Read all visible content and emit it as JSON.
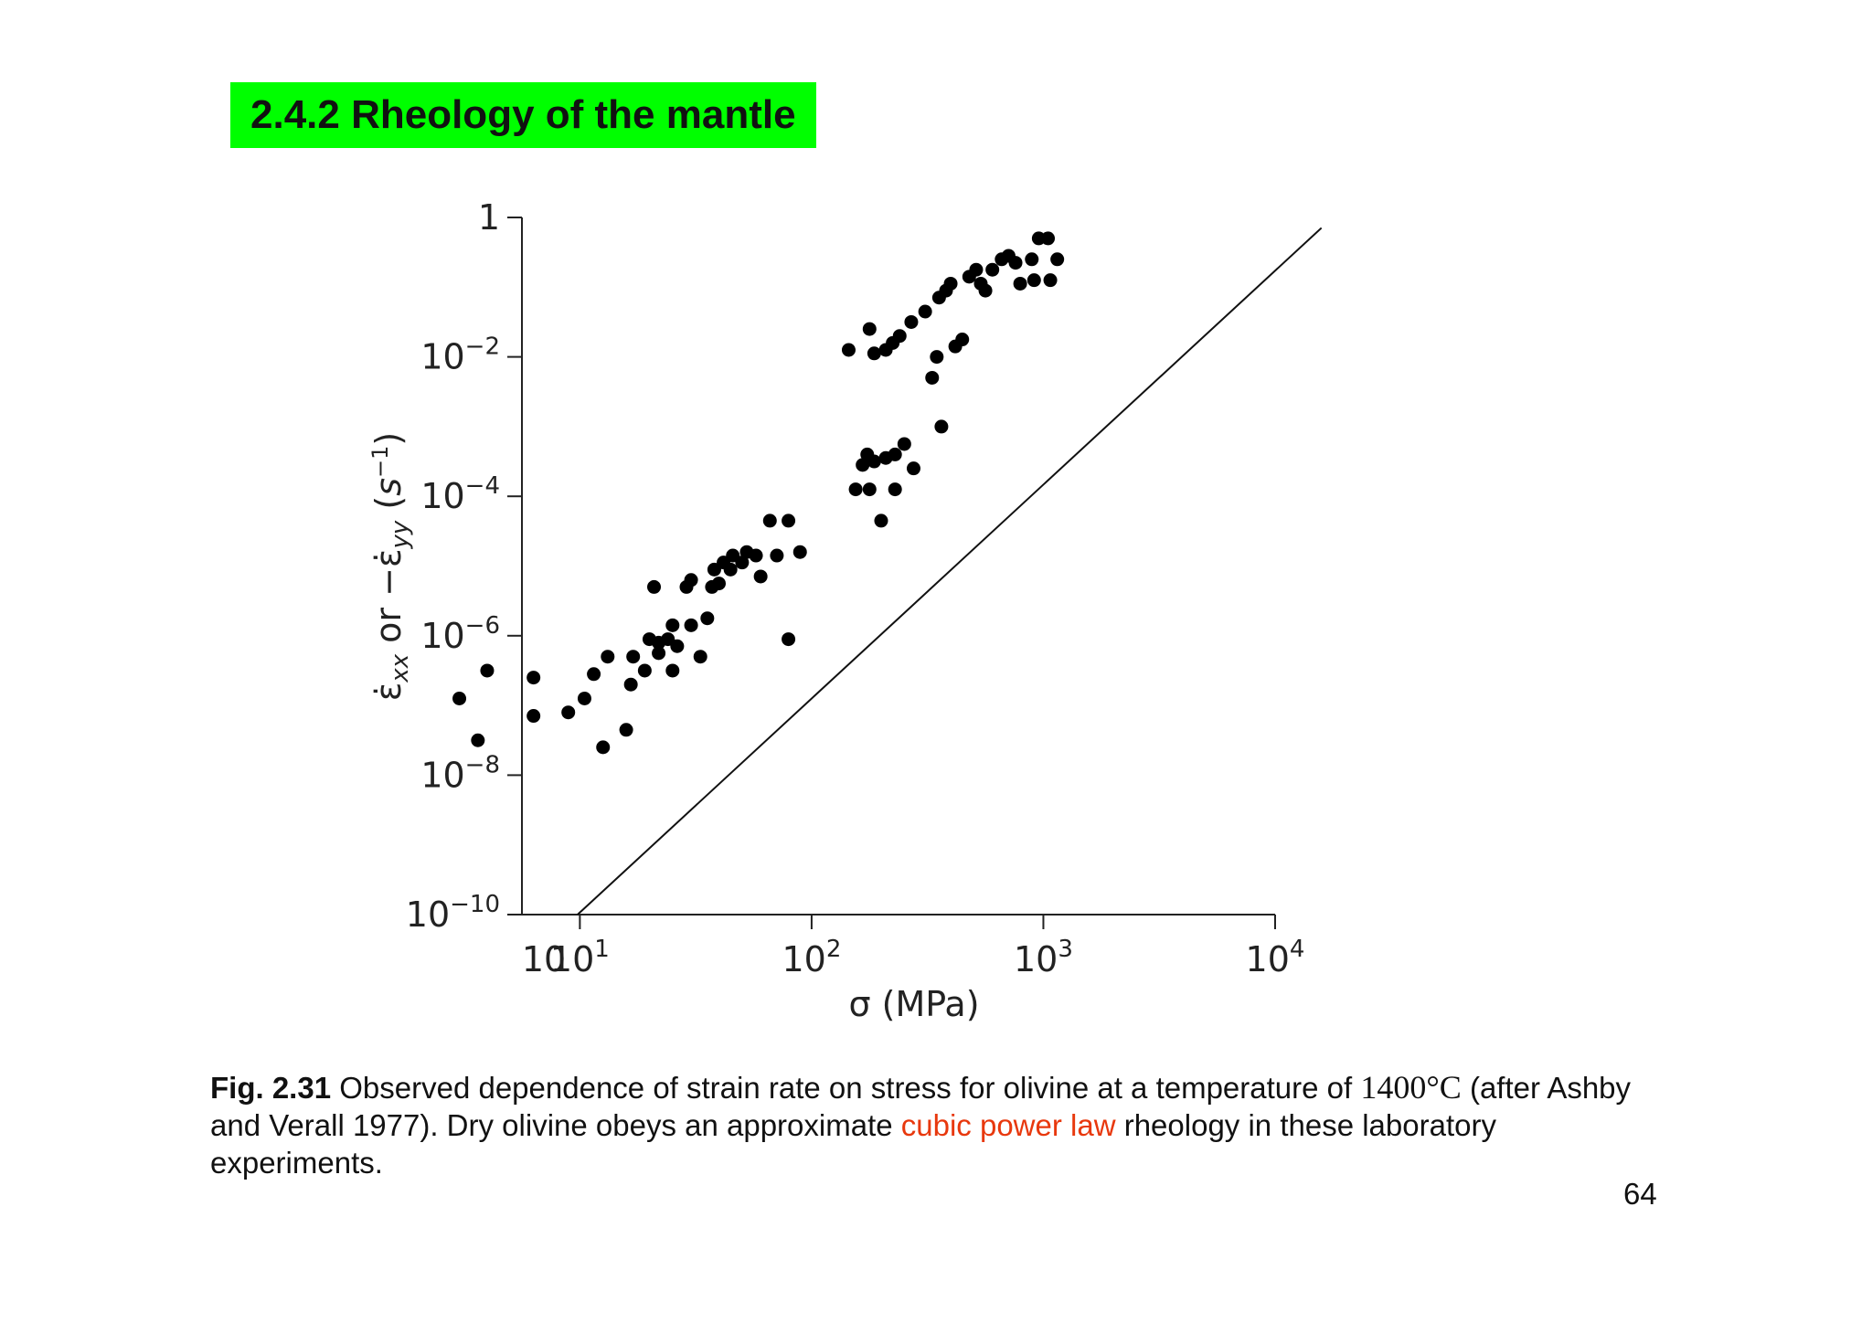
{
  "slide": {
    "title": "2.4.2 Rheology of the mantle",
    "page_number": "64",
    "title_bg": "#00ff00",
    "highlight_color": "#e8380d"
  },
  "caption": {
    "fig_label": "Fig. 2.31",
    "text_1": " Observed dependence of strain rate on stress for olivine at a temperature of ",
    "temperature": "1400°C",
    "text_2": " (after Ashby and Verall 1977). Dry olivine obeys an approximate ",
    "highlight": "cubic power law",
    "text_3": " rheology in these laboratory experiments."
  },
  "chart_data": {
    "type": "scatter",
    "xlabel": "σ (MPa)",
    "ylabel": "ε̇xx or −ε̇yy (s−1)",
    "x_scale": "log",
    "y_scale": "log",
    "xlim_log10": [
      0.75,
      4
    ],
    "ylim_log10": [
      -10,
      0
    ],
    "x_ticks": [
      {
        "exp": 1,
        "base": "10",
        "sup": "1"
      },
      {
        "exp": 2,
        "base": "10",
        "sup": "2"
      },
      {
        "exp": 3,
        "base": "10",
        "sup": "3"
      },
      {
        "exp": 4,
        "base": "10",
        "sup": "4"
      }
    ],
    "x_origin_label": "10",
    "y_ticks": [
      {
        "exp": 0,
        "base": "1",
        "sup": ""
      },
      {
        "exp": -2,
        "base": "10",
        "sup": "−2"
      },
      {
        "exp": -4,
        "base": "10",
        "sup": "−4"
      },
      {
        "exp": -6,
        "base": "10",
        "sup": "−6"
      },
      {
        "exp": -8,
        "base": "10",
        "sup": "−8"
      },
      {
        "exp": -10,
        "base": "10",
        "sup": "−10"
      }
    ],
    "fit_line": {
      "description": "cubic power law",
      "points_log10": [
        [
          0.99,
          -10.0
        ],
        [
          4.2,
          -0.15
        ]
      ]
    },
    "points_log10": [
      [
        0.48,
        -6.9
      ],
      [
        0.56,
        -7.5
      ],
      [
        0.6,
        -6.5
      ],
      [
        0.8,
        -7.15
      ],
      [
        0.8,
        -6.6
      ],
      [
        0.95,
        -7.1
      ],
      [
        1.02,
        -6.9
      ],
      [
        1.06,
        -6.55
      ],
      [
        1.1,
        -7.6
      ],
      [
        1.12,
        -6.3
      ],
      [
        1.2,
        -7.35
      ],
      [
        1.22,
        -6.7
      ],
      [
        1.23,
        -6.3
      ],
      [
        1.28,
        -6.5
      ],
      [
        1.3,
        -6.05
      ],
      [
        1.32,
        -5.3
      ],
      [
        1.34,
        -6.25
      ],
      [
        1.34,
        -6.1
      ],
      [
        1.38,
        -6.05
      ],
      [
        1.4,
        -6.5
      ],
      [
        1.4,
        -5.85
      ],
      [
        1.42,
        -6.15
      ],
      [
        1.46,
        -5.3
      ],
      [
        1.48,
        -5.2
      ],
      [
        1.48,
        -5.85
      ],
      [
        1.52,
        -6.3
      ],
      [
        1.55,
        -5.75
      ],
      [
        1.57,
        -5.3
      ],
      [
        1.58,
        -5.05
      ],
      [
        1.6,
        -5.25
      ],
      [
        1.62,
        -4.95
      ],
      [
        1.65,
        -5.05
      ],
      [
        1.66,
        -4.85
      ],
      [
        1.7,
        -4.95
      ],
      [
        1.72,
        -4.8
      ],
      [
        1.76,
        -4.85
      ],
      [
        1.78,
        -5.15
      ],
      [
        1.85,
        -4.85
      ],
      [
        1.9,
        -4.35
      ],
      [
        1.95,
        -4.8
      ],
      [
        1.9,
        -6.05
      ],
      [
        1.82,
        -4.35
      ],
      [
        2.19,
        -3.9
      ],
      [
        2.22,
        -3.55
      ],
      [
        2.24,
        -3.4
      ],
      [
        2.25,
        -3.9
      ],
      [
        2.27,
        -3.5
      ],
      [
        2.3,
        -4.35
      ],
      [
        2.32,
        -3.45
      ],
      [
        2.36,
        -3.4
      ],
      [
        2.36,
        -3.9
      ],
      [
        2.4,
        -3.25
      ],
      [
        2.16,
        -1.9
      ],
      [
        2.25,
        -1.6
      ],
      [
        2.27,
        -1.95
      ],
      [
        2.32,
        -1.9
      ],
      [
        2.35,
        -1.8
      ],
      [
        2.38,
        -1.7
      ],
      [
        2.43,
        -1.5
      ],
      [
        2.49,
        -1.35
      ],
      [
        2.52,
        -2.3
      ],
      [
        2.54,
        -2.0
      ],
      [
        2.55,
        -1.15
      ],
      [
        2.58,
        -1.05
      ],
      [
        2.6,
        -0.95
      ],
      [
        2.62,
        -1.85
      ],
      [
        2.65,
        -1.75
      ],
      [
        2.68,
        -0.85
      ],
      [
        2.71,
        -0.75
      ],
      [
        2.73,
        -0.95
      ],
      [
        2.75,
        -1.05
      ],
      [
        2.78,
        -0.75
      ],
      [
        2.82,
        -0.6
      ],
      [
        2.85,
        -0.55
      ],
      [
        2.88,
        -0.65
      ],
      [
        2.95,
        -0.6
      ],
      [
        2.98,
        -0.3
      ],
      [
        3.02,
        -0.3
      ],
      [
        3.03,
        -0.9
      ],
      [
        3.06,
        -0.6
      ],
      [
        2.96,
        -0.9
      ],
      [
        2.9,
        -0.95
      ],
      [
        2.56,
        -3.0
      ],
      [
        2.44,
        -3.6
      ]
    ]
  }
}
